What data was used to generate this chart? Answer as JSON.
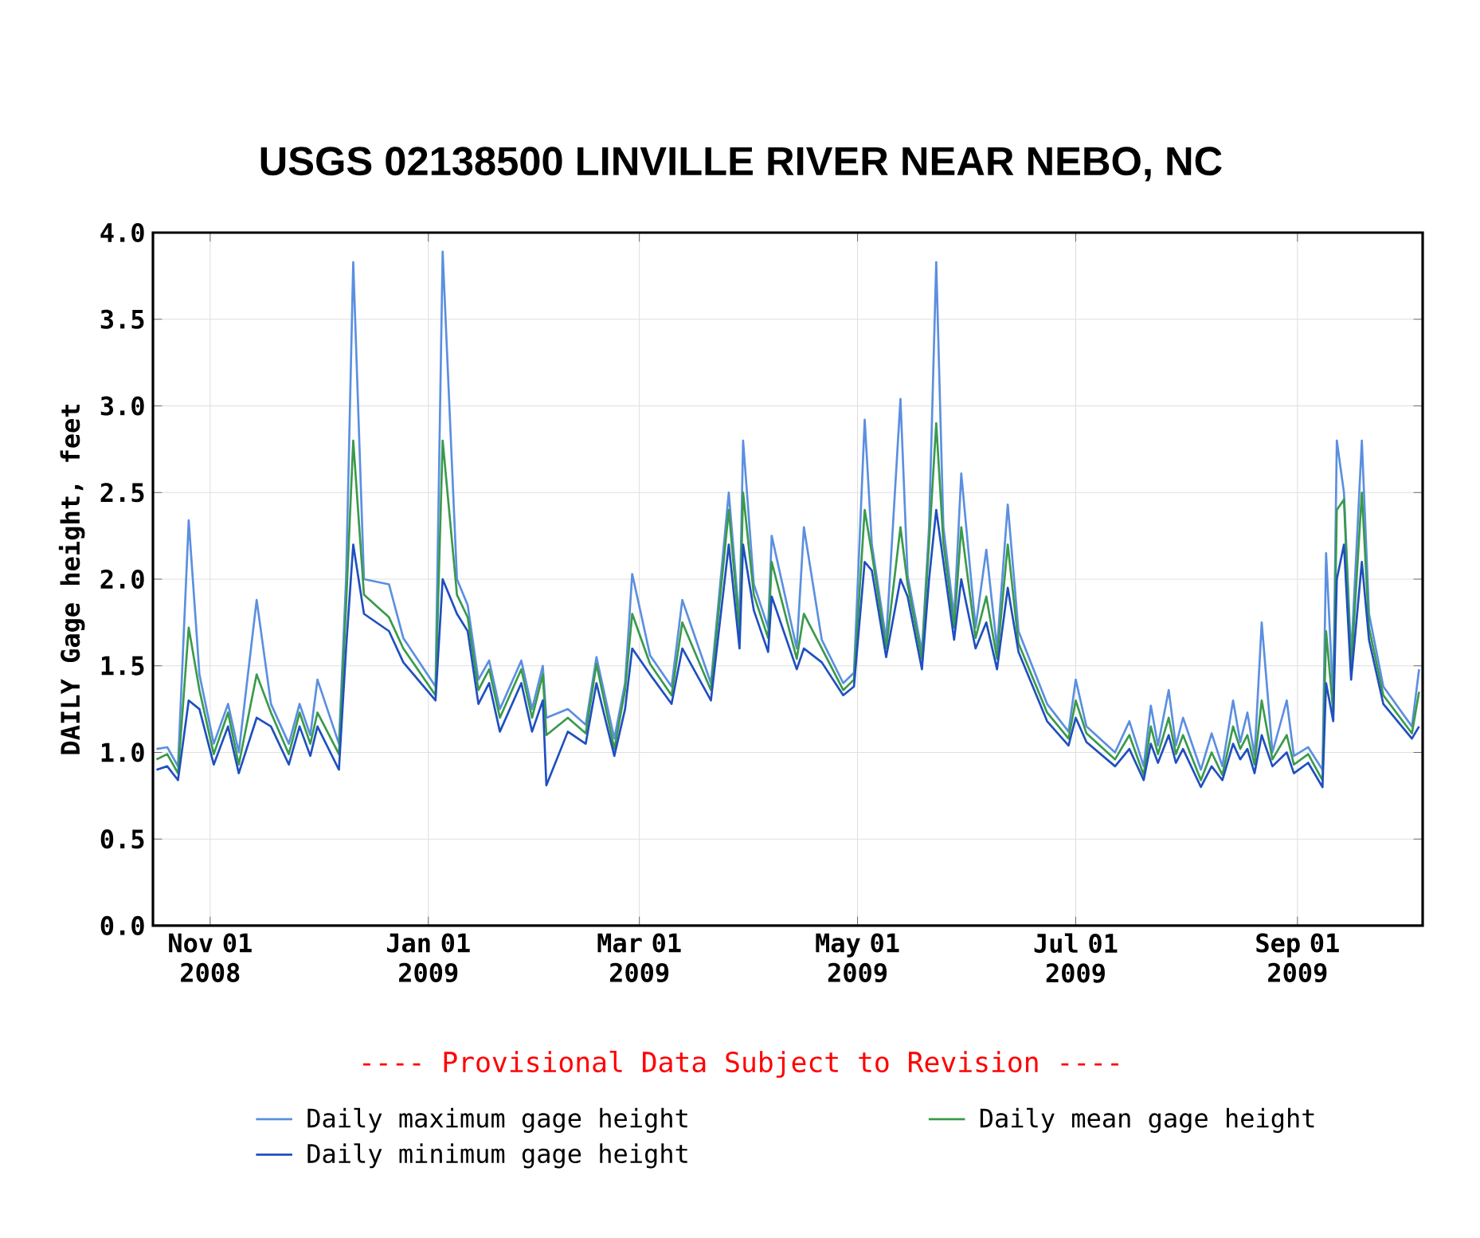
{
  "chart_data": {
    "type": "line",
    "title": "USGS 02138500 LINVILLE RIVER NEAR NEBO, NC",
    "ylabel": "DAILY Gage height, feet",
    "annotations": [
      "---- Provisional Data Subject to Revision ----"
    ],
    "x": [
      "2008-10-17",
      "2008-10-20",
      "2008-10-23",
      "2008-10-26",
      "2008-10-29",
      "2008-11-02",
      "2008-11-06",
      "2008-11-09",
      "2008-11-14",
      "2008-11-18",
      "2008-11-23",
      "2008-11-26",
      "2008-11-29",
      "2008-12-01",
      "2008-12-07",
      "2008-12-09",
      "2008-12-11",
      "2008-12-14",
      "2008-12-21",
      "2008-12-25",
      "2009-01-03",
      "2009-01-05",
      "2009-01-09",
      "2009-01-12",
      "2009-01-15",
      "2009-01-18",
      "2009-01-21",
      "2009-01-27",
      "2009-01-30",
      "2009-02-02",
      "2009-02-03",
      "2009-02-09",
      "2009-02-14",
      "2009-02-17",
      "2009-02-22",
      "2009-02-25",
      "2009-02-27",
      "2009-03-04",
      "2009-03-10",
      "2009-03-13",
      "2009-03-21",
      "2009-03-26",
      "2009-03-29",
      "2009-03-30",
      "2009-04-02",
      "2009-04-06",
      "2009-04-07",
      "2009-04-14",
      "2009-04-16",
      "2009-04-21",
      "2009-04-27",
      "2009-04-30",
      "2009-05-03",
      "2009-05-05",
      "2009-05-09",
      "2009-05-13",
      "2009-05-15",
      "2009-05-19",
      "2009-05-21",
      "2009-05-23",
      "2009-05-25",
      "2009-05-28",
      "2009-05-30",
      "2009-06-03",
      "2009-06-06",
      "2009-06-09",
      "2009-06-12",
      "2009-06-15",
      "2009-06-23",
      "2009-06-29",
      "2009-07-01",
      "2009-07-04",
      "2009-07-12",
      "2009-07-16",
      "2009-07-20",
      "2009-07-22",
      "2009-07-24",
      "2009-07-27",
      "2009-07-29",
      "2009-07-31",
      "2009-08-05",
      "2009-08-08",
      "2009-08-11",
      "2009-08-14",
      "2009-08-16",
      "2009-08-18",
      "2009-08-20",
      "2009-08-22",
      "2009-08-25",
      "2009-08-29",
      "2009-08-31",
      "2009-09-04",
      "2009-09-08",
      "2009-09-09",
      "2009-09-11",
      "2009-09-12",
      "2009-09-14",
      "2009-09-16",
      "2009-09-19",
      "2009-09-21",
      "2009-09-25",
      "2009-10-03",
      "2009-10-05"
    ],
    "series": [
      {
        "name": "Daily maximum gage height",
        "color": "#5b8fe0",
        "values": [
          1.02,
          1.03,
          0.92,
          2.34,
          1.45,
          1.05,
          1.28,
          1.0,
          1.88,
          1.28,
          1.05,
          1.28,
          1.1,
          1.42,
          1.05,
          2.0,
          3.83,
          2.0,
          1.97,
          1.66,
          1.38,
          3.89,
          2.0,
          1.85,
          1.42,
          1.53,
          1.25,
          1.53,
          1.25,
          1.5,
          1.2,
          1.25,
          1.16,
          1.55,
          1.08,
          1.4,
          2.03,
          1.56,
          1.38,
          1.88,
          1.4,
          2.5,
          1.75,
          2.8,
          1.97,
          1.72,
          2.25,
          1.6,
          2.3,
          1.65,
          1.4,
          1.46,
          2.92,
          2.2,
          1.65,
          3.04,
          2.02,
          1.58,
          2.3,
          3.83,
          2.3,
          1.78,
          2.61,
          1.72,
          2.17,
          1.6,
          2.43,
          1.7,
          1.28,
          1.12,
          1.42,
          1.15,
          1.0,
          1.18,
          0.92,
          1.27,
          1.04,
          1.36,
          1.04,
          1.2,
          0.9,
          1.11,
          0.92,
          1.3,
          1.06,
          1.23,
          0.98,
          1.75,
          1.0,
          1.3,
          0.98,
          1.03,
          0.9,
          2.15,
          1.3,
          2.8,
          2.5,
          1.55,
          2.8,
          1.8,
          1.38,
          1.15,
          1.48
        ]
      },
      {
        "name": "Daily mean gage height",
        "color": "#3a9a4a",
        "values": [
          0.96,
          0.99,
          0.88,
          1.72,
          1.36,
          0.99,
          1.23,
          0.93,
          1.45,
          1.23,
          0.99,
          1.23,
          1.05,
          1.23,
          0.99,
          1.85,
          2.8,
          1.91,
          1.78,
          1.6,
          1.33,
          2.8,
          1.91,
          1.78,
          1.36,
          1.48,
          1.2,
          1.48,
          1.2,
          1.45,
          1.1,
          1.2,
          1.11,
          1.51,
          1.02,
          1.36,
          1.8,
          1.51,
          1.33,
          1.75,
          1.36,
          2.4,
          1.69,
          2.5,
          1.91,
          1.66,
          2.1,
          1.54,
          1.8,
          1.6,
          1.36,
          1.42,
          2.4,
          2.15,
          1.6,
          2.3,
          1.97,
          1.54,
          2.21,
          2.9,
          2.21,
          1.72,
          2.3,
          1.66,
          1.9,
          1.54,
          2.2,
          1.63,
          1.23,
          1.08,
          1.3,
          1.11,
          0.96,
          1.1,
          0.87,
          1.15,
          0.99,
          1.2,
          0.99,
          1.1,
          0.84,
          1.0,
          0.87,
          1.15,
          1.02,
          1.1,
          0.93,
          1.3,
          0.96,
          1.1,
          0.93,
          0.99,
          0.84,
          1.7,
          1.23,
          2.4,
          2.46,
          1.48,
          2.5,
          1.72,
          1.33,
          1.11,
          1.35
        ]
      },
      {
        "name": "Daily minimum gage height",
        "color": "#1f4fc0",
        "values": [
          0.9,
          0.92,
          0.84,
          1.3,
          1.25,
          0.93,
          1.15,
          0.88,
          1.2,
          1.15,
          0.93,
          1.15,
          0.98,
          1.15,
          0.9,
          1.6,
          2.2,
          1.8,
          1.7,
          1.52,
          1.3,
          2.0,
          1.8,
          1.7,
          1.28,
          1.4,
          1.12,
          1.4,
          1.12,
          1.3,
          0.81,
          1.12,
          1.05,
          1.4,
          0.98,
          1.25,
          1.6,
          1.45,
          1.28,
          1.6,
          1.3,
          2.2,
          1.6,
          2.2,
          1.82,
          1.58,
          1.9,
          1.48,
          1.6,
          1.52,
          1.33,
          1.38,
          2.1,
          2.05,
          1.55,
          2.0,
          1.9,
          1.48,
          2.0,
          2.4,
          2.1,
          1.65,
          2.0,
          1.6,
          1.75,
          1.48,
          1.95,
          1.58,
          1.18,
          1.04,
          1.2,
          1.06,
          0.92,
          1.02,
          0.84,
          1.05,
          0.94,
          1.1,
          0.94,
          1.02,
          0.8,
          0.92,
          0.84,
          1.05,
          0.96,
          1.02,
          0.88,
          1.1,
          0.92,
          1.0,
          0.88,
          0.94,
          0.8,
          1.4,
          1.18,
          2.0,
          2.2,
          1.42,
          2.1,
          1.65,
          1.28,
          1.08,
          1.15
        ]
      }
    ],
    "xlim": [
      "2008-10-16",
      "2009-10-06"
    ],
    "xticks": [
      {
        "value": "2008-11-01",
        "label": "Nov 01 2008"
      },
      {
        "value": "2009-01-01",
        "label": "Jan 01 2009"
      },
      {
        "value": "2009-03-01",
        "label": "Mar 01 2009"
      },
      {
        "value": "2009-05-01",
        "label": "May 01 2009"
      },
      {
        "value": "2009-07-01",
        "label": "Jul 01 2009"
      },
      {
        "value": "2009-09-01",
        "label": "Sep 01 2009"
      }
    ],
    "ylim": [
      0,
      4
    ],
    "yticks": [
      {
        "value": 0,
        "label": "0.0"
      },
      {
        "value": 0.5,
        "label": "0.5"
      },
      {
        "value": 1,
        "label": "1.0"
      },
      {
        "value": 1.5,
        "label": "1.5"
      },
      {
        "value": 2,
        "label": "2.0"
      },
      {
        "value": 2.5,
        "label": "2.5"
      },
      {
        "value": 3,
        "label": "3.0"
      },
      {
        "value": 3.5,
        "label": "3.5"
      },
      {
        "value": 4,
        "label": "4.0"
      }
    ],
    "grid": true,
    "legend": "bottom"
  }
}
